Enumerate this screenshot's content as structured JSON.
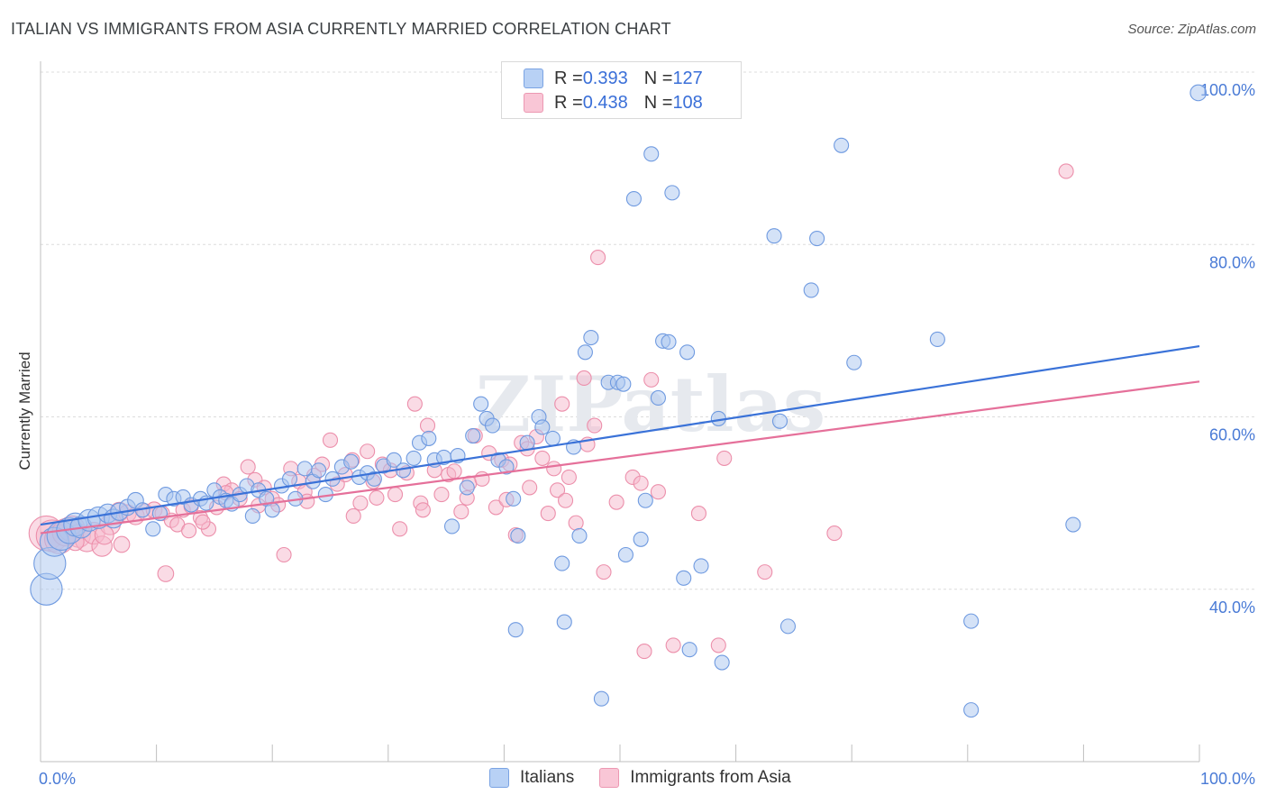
{
  "header": {
    "title": "ITALIAN VS IMMIGRANTS FROM ASIA CURRENTLY MARRIED CORRELATION CHART",
    "source": "Source: ZipAtlas.com"
  },
  "legend_top": {
    "rows": [
      {
        "r_label": "R = ",
        "r_value": "0.393",
        "n_label": "N = ",
        "n_value": "127"
      },
      {
        "r_label": "R = ",
        "r_value": "0.438",
        "n_label": "N = ",
        "n_value": "108"
      }
    ]
  },
  "watermark": "ZIPatlas",
  "colors": {
    "italians_fill": "#a9c6f0",
    "italians_stroke": "#6f9ae0",
    "italians_line": "#3a72d8",
    "asia_fill": "#f5b8cb",
    "asia_stroke": "#ec8fab",
    "asia_line": "#e5709a",
    "grid": "#dcdcdc",
    "axis_text": "#4a7bd6"
  },
  "chart_data": {
    "type": "scatter",
    "title": "ITALIAN VS IMMIGRANTS FROM ASIA CURRENTLY MARRIED CORRELATION CHART",
    "xlabel": "",
    "ylabel": "Currently Married",
    "xlim": [
      0,
      100
    ],
    "ylim": [
      20,
      100
    ],
    "x_tick_labels": [
      "0.0%",
      "100.0%"
    ],
    "y_ticks": [
      40,
      60,
      80,
      100
    ],
    "y_tick_labels": [
      "40.0%",
      "60.0%",
      "80.0%",
      "100.0%"
    ],
    "grid": true,
    "legend_position": "bottom",
    "series": [
      {
        "name": "Italians",
        "r": 0.393,
        "n": 127,
        "trend": {
          "x": [
            0,
            100
          ],
          "y": [
            47.5,
            68.2
          ]
        },
        "points": [
          [
            0.5,
            40,
            2.2
          ],
          [
            0.8,
            43,
            2.2
          ],
          [
            1.2,
            45.5,
            2
          ],
          [
            1.8,
            46.2,
            2
          ],
          [
            2.5,
            46.8,
            1.8
          ],
          [
            3,
            47.5,
            1.6
          ],
          [
            3.5,
            47.2,
            1.5
          ],
          [
            4.2,
            48,
            1.5
          ],
          [
            5,
            48.3,
            1.5
          ],
          [
            5.8,
            48.8,
            1.3
          ],
          [
            6.3,
            48.2,
            1.3
          ],
          [
            6.8,
            49,
            1.2
          ],
          [
            7.5,
            49.5,
            1.1
          ],
          [
            8.2,
            50.3,
            1.1
          ],
          [
            8.8,
            49.2,
            1
          ],
          [
            9.7,
            47,
            1
          ],
          [
            10.3,
            48.8,
            1
          ],
          [
            10.8,
            51,
            1
          ],
          [
            11.5,
            50.5,
            1
          ],
          [
            12.3,
            50.7,
            1
          ],
          [
            13,
            49.8,
            1
          ],
          [
            13.8,
            50.5,
            1
          ],
          [
            14.3,
            50,
            1
          ],
          [
            15,
            51.5,
            1
          ],
          [
            15.5,
            50.7,
            1
          ],
          [
            16,
            50.3,
            1
          ],
          [
            16.5,
            49.9,
            1
          ],
          [
            17.2,
            51,
            1
          ],
          [
            17.8,
            52,
            1
          ],
          [
            18.3,
            48.5,
            1
          ],
          [
            18.8,
            51.5,
            1
          ],
          [
            19.5,
            50.5,
            1
          ],
          [
            20,
            49.2,
            1
          ],
          [
            20.8,
            52,
            1
          ],
          [
            21.5,
            52.8,
            1
          ],
          [
            22,
            50.5,
            1
          ],
          [
            22.8,
            54,
            1
          ],
          [
            23.5,
            52.5,
            1
          ],
          [
            24,
            53.8,
            1
          ],
          [
            24.6,
            51,
            1
          ],
          [
            25.2,
            52.8,
            1
          ],
          [
            26,
            54.2,
            1
          ],
          [
            26.8,
            54.8,
            1
          ],
          [
            27.5,
            53,
            1
          ],
          [
            28.2,
            53.5,
            1
          ],
          [
            28.8,
            52.8,
            1
          ],
          [
            29.6,
            54.3,
            1
          ],
          [
            30.5,
            55,
            1
          ],
          [
            31.3,
            53.8,
            1
          ],
          [
            32.2,
            55.2,
            1
          ],
          [
            32.7,
            57,
            1
          ],
          [
            33.5,
            57.5,
            1
          ],
          [
            34,
            55,
            1
          ],
          [
            34.8,
            55.3,
            1
          ],
          [
            35.5,
            47.3,
            1
          ],
          [
            36,
            55.5,
            1
          ],
          [
            36.8,
            51.8,
            1
          ],
          [
            37.3,
            57.8,
            1
          ],
          [
            38,
            61.5,
            1
          ],
          [
            38.5,
            59.8,
            1
          ],
          [
            39,
            59,
            1
          ],
          [
            39.5,
            55,
            1
          ],
          [
            40.2,
            54.2,
            1
          ],
          [
            40.8,
            50.5,
            1
          ],
          [
            41.2,
            46.2,
            1
          ],
          [
            41,
            35.3,
            1
          ],
          [
            42,
            57,
            1
          ],
          [
            43,
            60,
            1
          ],
          [
            43.3,
            58.8,
            1
          ],
          [
            44.2,
            57.5,
            1
          ],
          [
            45,
            43,
            1
          ],
          [
            45.2,
            36.2,
            1
          ],
          [
            46,
            56.5,
            1
          ],
          [
            46.5,
            46.2,
            1
          ],
          [
            47,
            67.5,
            1
          ],
          [
            47.5,
            69.2,
            1
          ],
          [
            48.4,
            27.3,
            1
          ],
          [
            49,
            64,
            1
          ],
          [
            49.8,
            64,
            1
          ],
          [
            50.3,
            63.8,
            1
          ],
          [
            50.5,
            44,
            1
          ],
          [
            51.2,
            85.3,
            1
          ],
          [
            51.8,
            45.8,
            1
          ],
          [
            52.2,
            50.3,
            1
          ],
          [
            52.7,
            90.5,
            1
          ],
          [
            53.3,
            62.2,
            1
          ],
          [
            53.7,
            68.8,
            1
          ],
          [
            54.2,
            68.7,
            1
          ],
          [
            54.5,
            86,
            1
          ],
          [
            55.5,
            41.3,
            1
          ],
          [
            55.8,
            67.5,
            1
          ],
          [
            56,
            33,
            1
          ],
          [
            57,
            42.7,
            1
          ],
          [
            58.5,
            59.8,
            1
          ],
          [
            58.8,
            31.5,
            1
          ],
          [
            63.3,
            81,
            1
          ],
          [
            63.8,
            59.5,
            1
          ],
          [
            64.5,
            35.7,
            1
          ],
          [
            66.5,
            74.7,
            1
          ],
          [
            67,
            80.7,
            1
          ],
          [
            69.1,
            91.5,
            1
          ],
          [
            70.2,
            66.3,
            1
          ],
          [
            77.4,
            69,
            1
          ],
          [
            80.3,
            36.3,
            1
          ],
          [
            80.3,
            26,
            1
          ],
          [
            89.1,
            47.5,
            1
          ],
          [
            99.9,
            97.6,
            1.1
          ]
        ]
      },
      {
        "name": "Immigrants from Asia",
        "r": 0.438,
        "n": 108,
        "trend": {
          "x": [
            0,
            100
          ],
          "y": [
            46.5,
            64.1
          ]
        },
        "points": [
          [
            0.5,
            46.5,
            2.4
          ],
          [
            1,
            46.2,
            2.2
          ],
          [
            1.6,
            45.8,
            2
          ],
          [
            2.2,
            46.6,
            1.9
          ],
          [
            2.7,
            47,
            1.8
          ],
          [
            3.3,
            46.2,
            1.6
          ],
          [
            4,
            45.7,
            1.6
          ],
          [
            4.6,
            46.5,
            1.5
          ],
          [
            5.3,
            45,
            1.4
          ],
          [
            6,
            47.5,
            1.4
          ],
          [
            6.8,
            49,
            1.3
          ],
          [
            7.5,
            48.8,
            1.2
          ],
          [
            8.2,
            48.5,
            1.2
          ],
          [
            9,
            49,
            1.1
          ],
          [
            9.8,
            49.2,
            1.1
          ],
          [
            10.5,
            48.8,
            1
          ],
          [
            11.3,
            48,
            1
          ],
          [
            11.8,
            47.5,
            1
          ],
          [
            12.3,
            49.2,
            1
          ],
          [
            13,
            49.6,
            1
          ],
          [
            13.8,
            48.3,
            1
          ],
          [
            14.5,
            47,
            1
          ],
          [
            15.2,
            49.5,
            1
          ],
          [
            15.8,
            52.2,
            1
          ],
          [
            16.5,
            51.5,
            1
          ],
          [
            17.2,
            50.5,
            1
          ],
          [
            17.9,
            54.2,
            1
          ],
          [
            18.5,
            52.7,
            1
          ],
          [
            19.3,
            51.8,
            1
          ],
          [
            20,
            50.5,
            1
          ],
          [
            20.5,
            49.8,
            1
          ],
          [
            21,
            44,
            1
          ],
          [
            21.6,
            54,
            1
          ],
          [
            22.3,
            52.5,
            1
          ],
          [
            22.8,
            51.3,
            1
          ],
          [
            23.6,
            53.2,
            1
          ],
          [
            24.3,
            54.5,
            1
          ],
          [
            25,
            57.3,
            1
          ],
          [
            25.6,
            52.2,
            1
          ],
          [
            26.3,
            53.3,
            1
          ],
          [
            26.9,
            55,
            1
          ],
          [
            27.6,
            50,
            1
          ],
          [
            28.2,
            56,
            1
          ],
          [
            28.7,
            52.5,
            1
          ],
          [
            29.5,
            54.5,
            1
          ],
          [
            30.2,
            53.8,
            1
          ],
          [
            30.6,
            51,
            1
          ],
          [
            31,
            47,
            1
          ],
          [
            31.6,
            53.5,
            1
          ],
          [
            32.3,
            61.5,
            1
          ],
          [
            32.8,
            50,
            1
          ],
          [
            33.4,
            59,
            1
          ],
          [
            34,
            53.8,
            1
          ],
          [
            34.6,
            51,
            1
          ],
          [
            35.2,
            53.3,
            1
          ],
          [
            35.7,
            53.7,
            1
          ],
          [
            36.3,
            49,
            1
          ],
          [
            37,
            52.3,
            1
          ],
          [
            37.5,
            57.8,
            1
          ],
          [
            38.1,
            52.8,
            1
          ],
          [
            38.7,
            55.8,
            1
          ],
          [
            39.3,
            49.5,
            1
          ],
          [
            39.8,
            55,
            1
          ],
          [
            40.5,
            54.5,
            1
          ],
          [
            41,
            46.3,
            1
          ],
          [
            41.5,
            57,
            1
          ],
          [
            42,
            56.3,
            1
          ],
          [
            42.8,
            57.7,
            1
          ],
          [
            43.3,
            55.2,
            1
          ],
          [
            43.8,
            48.8,
            1
          ],
          [
            44.3,
            54,
            1
          ],
          [
            44.6,
            51.5,
            1
          ],
          [
            45,
            61.5,
            1
          ],
          [
            45.6,
            53,
            1
          ],
          [
            46.2,
            47.7,
            1
          ],
          [
            46.9,
            64.5,
            1
          ],
          [
            47.2,
            56.8,
            1
          ],
          [
            47.8,
            59,
            1
          ],
          [
            48.1,
            78.5,
            1
          ],
          [
            48.6,
            42,
            1
          ],
          [
            51.1,
            53,
            1
          ],
          [
            52.1,
            32.8,
            1
          ],
          [
            52.7,
            64.3,
            1
          ],
          [
            53.3,
            51.3,
            1
          ],
          [
            54.6,
            33.5,
            1
          ],
          [
            56.8,
            48.8,
            1
          ],
          [
            58.5,
            33.5,
            1
          ],
          [
            59,
            55.2,
            1
          ],
          [
            62.5,
            42,
            1
          ],
          [
            68.5,
            46.5,
            1
          ],
          [
            88.5,
            88.5,
            1
          ],
          [
            3,
            45.5,
            1.2
          ],
          [
            5.5,
            46.3,
            1.3
          ],
          [
            7,
            45.2,
            1.1
          ],
          [
            10.8,
            41.8,
            1.1
          ],
          [
            12.8,
            46.8,
            1
          ],
          [
            14,
            47.8,
            1
          ],
          [
            16,
            51.2,
            1
          ],
          [
            18.8,
            49.7,
            1
          ],
          [
            23,
            50.2,
            1
          ],
          [
            27,
            48.5,
            1
          ],
          [
            29,
            50.6,
            1
          ],
          [
            33,
            49.2,
            1
          ],
          [
            36.8,
            50.6,
            1
          ],
          [
            40.2,
            50.4,
            1
          ],
          [
            42.2,
            51.8,
            1
          ],
          [
            45.3,
            50.3,
            1
          ],
          [
            49.7,
            50.1,
            1
          ],
          [
            51.8,
            52.3,
            1
          ]
        ]
      }
    ]
  },
  "bottom_legend": {
    "items": [
      {
        "label": "Italians"
      },
      {
        "label": "Immigrants from Asia"
      }
    ]
  }
}
